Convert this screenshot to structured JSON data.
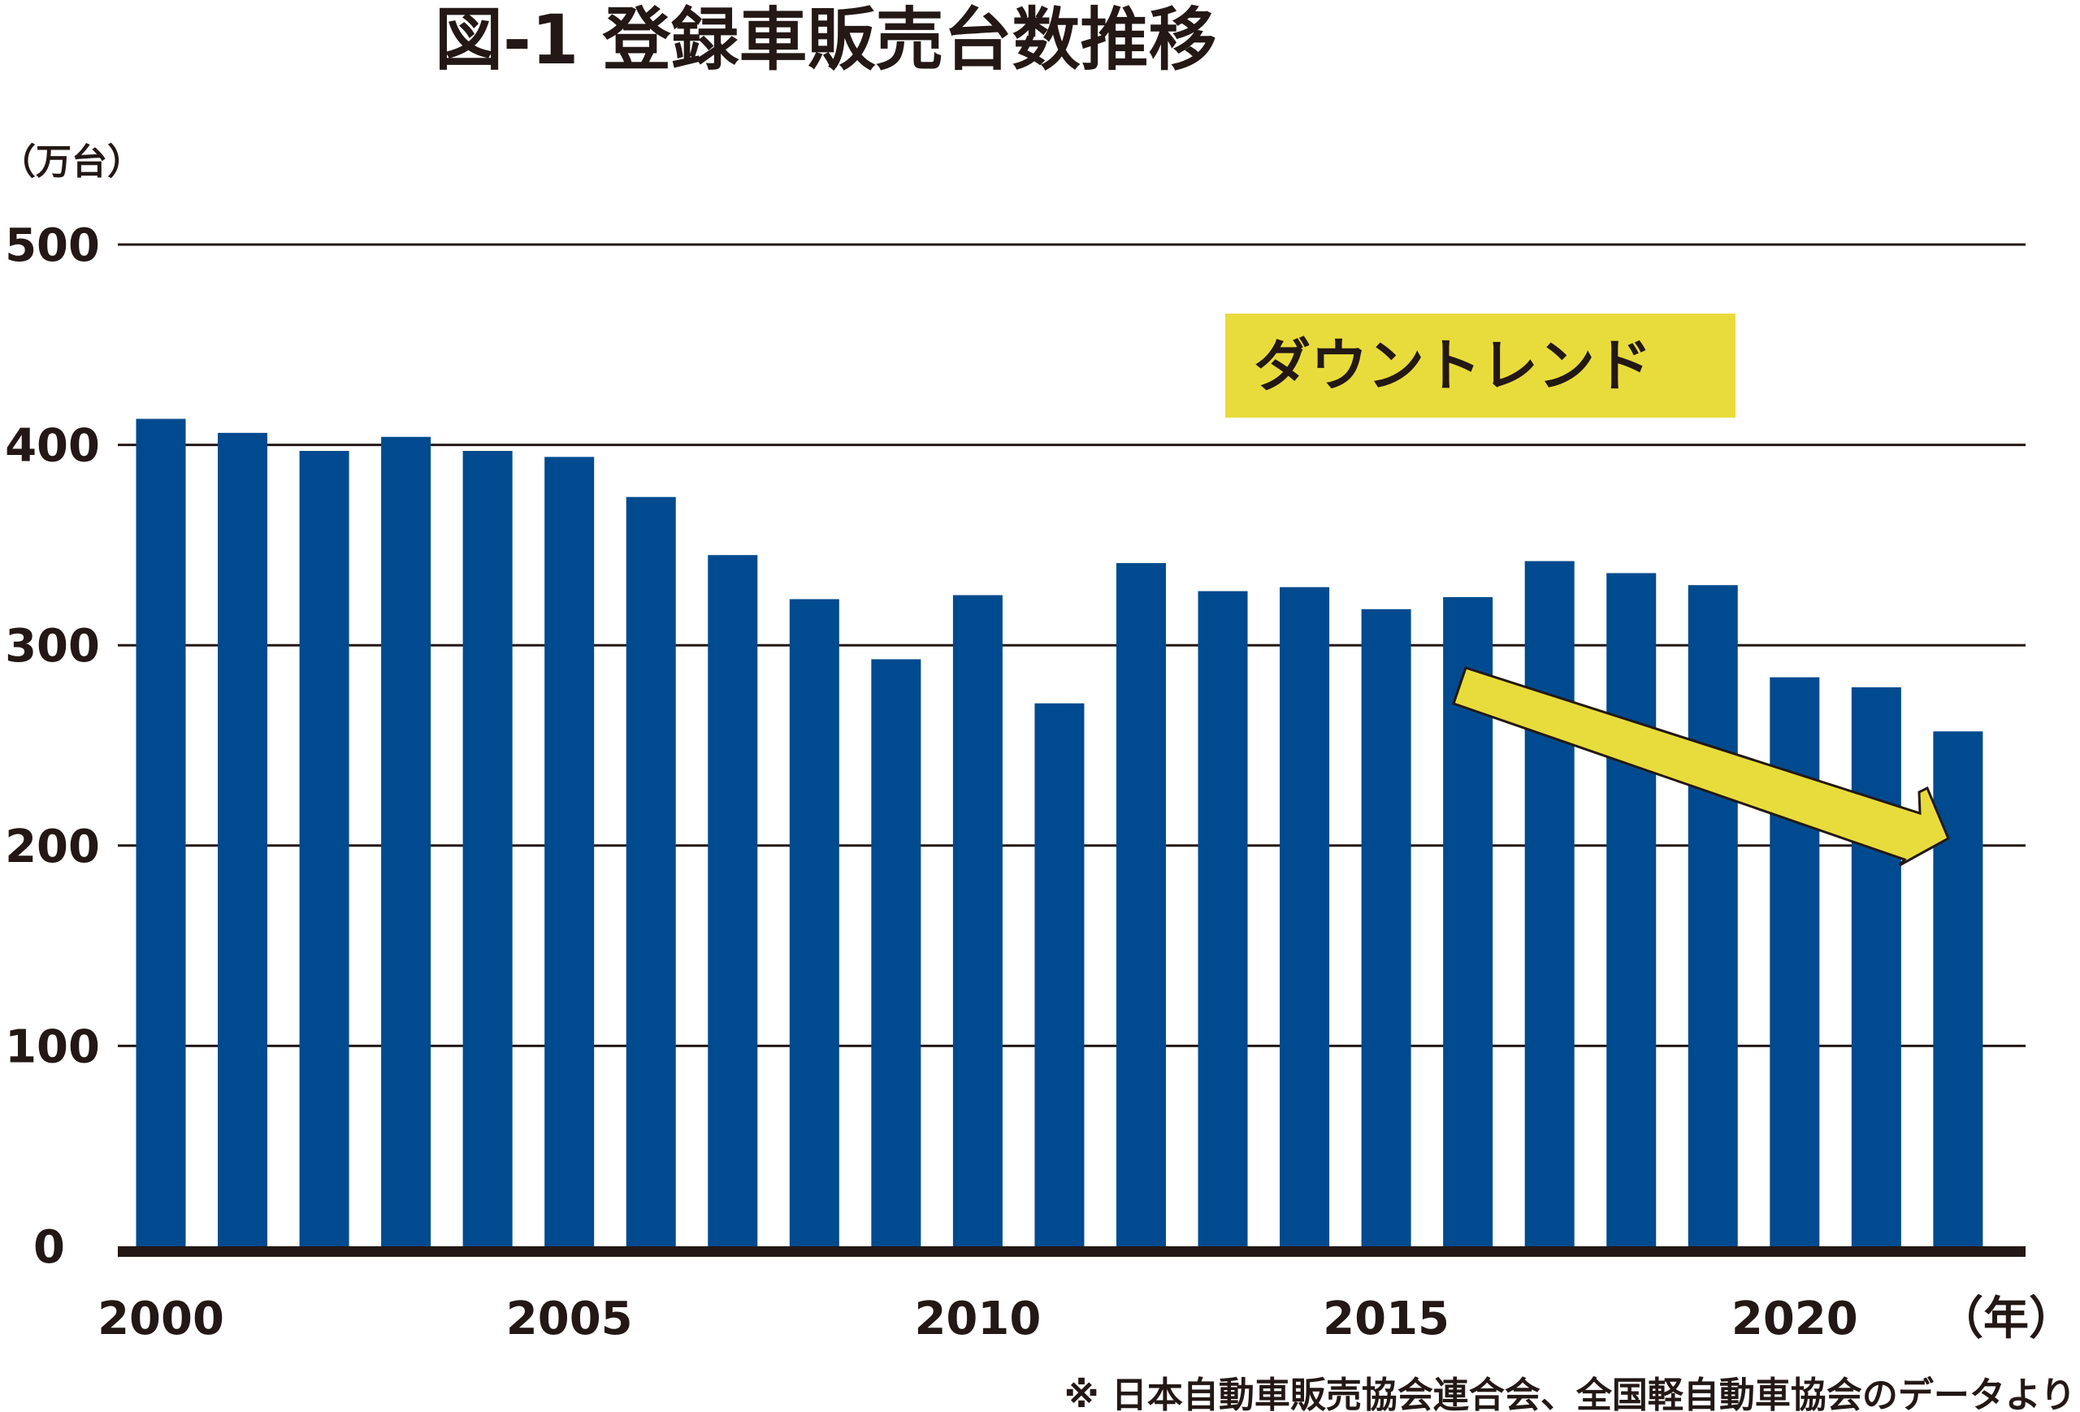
{
  "title": "図-1 登録車販売台数推移",
  "source_note": "※ 日本自動車販売協会連合会、全国軽自動車協会のデータより",
  "callout": {
    "label": "ダウントレンド",
    "box_color": "#E8DC3C",
    "arrow_color": "#E8DC3C"
  },
  "colors": {
    "bar": "#004A8F",
    "gridline": "#231815",
    "baseline": "#231815"
  },
  "chart_data": {
    "type": "bar",
    "title": "図-1 登録車販売台数推移",
    "ylabel": "（万台）",
    "xlabel": "（年）",
    "ylim": [
      0,
      500
    ],
    "yticks": [
      "0",
      "100",
      "200",
      "300",
      "400",
      "500"
    ],
    "xtick_labels": [
      "2000",
      "2005",
      "2010",
      "2015",
      "2020"
    ],
    "grid": true,
    "categories": [
      "2000",
      "2001",
      "2002",
      "2003",
      "2004",
      "2005",
      "2006",
      "2007",
      "2008",
      "2009",
      "2010",
      "2011",
      "2012",
      "2013",
      "2014",
      "2015",
      "2016",
      "2017",
      "2018",
      "2019",
      "2020",
      "2021",
      "2022"
    ],
    "values": [
      413,
      406,
      397,
      404,
      397,
      394,
      374,
      345,
      323,
      293,
      325,
      271,
      341,
      327,
      329,
      318,
      324,
      342,
      336,
      330,
      284,
      279,
      257
    ],
    "annotations": [
      "ダウントレンド"
    ]
  }
}
